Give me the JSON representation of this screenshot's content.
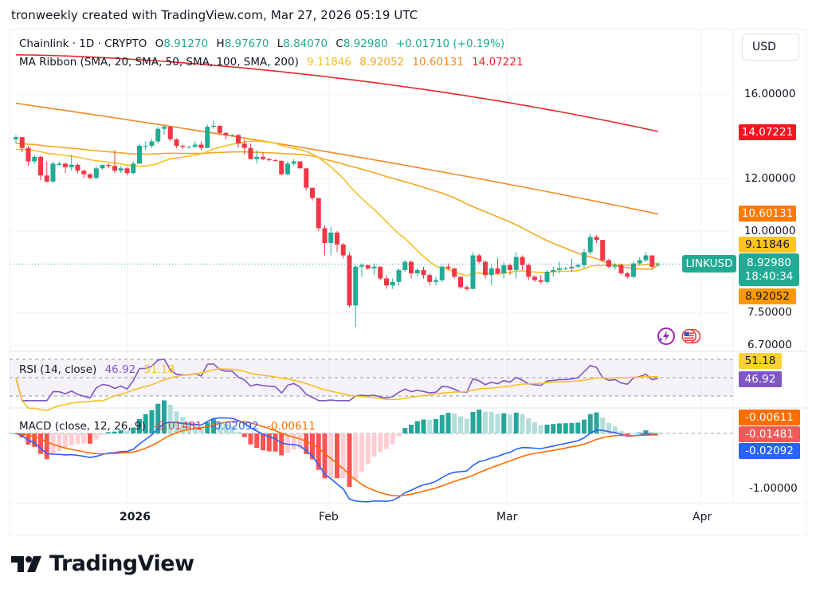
{
  "credit": "tronweekly created with TradingView.com, Mar 27, 2026 05:19 UTC",
  "symbol": {
    "name": "Chainlink · 1D · CRYPTO",
    "ticker": "LINKUSD",
    "open_label": "O",
    "open": "8.91270",
    "high_label": "H",
    "high": "8.97670",
    "low_label": "L",
    "low": "8.84070",
    "close_label": "C",
    "close": "8.92980",
    "change": "+0.01710 (+0.19%)",
    "countdown": "18:40:34"
  },
  "ma_ribbon": {
    "label": "MA Ribbon (SMA, 20, SMA, 50, SMA, 100, SMA, 200)",
    "values": [
      "9.11846",
      "8.92052",
      "10.60131",
      "14.07221"
    ],
    "colors": [
      "#f6c026",
      "#f5a623",
      "#f08a24",
      "#e8262d"
    ]
  },
  "rsi": {
    "label": "RSI (14, close)",
    "value": "46.92",
    "ma": "51.18"
  },
  "macd": {
    "label": "MACD (close, 12, 26, 9)",
    "hist": "-0.01481",
    "macd": "-0.02092",
    "signal": "-0.00611"
  },
  "currency_button": "USD",
  "price_axis": [
    "16.00000",
    "12.00000",
    "10.00000",
    "7.50000",
    "6.70000"
  ],
  "macd_axis": [
    "-1.00000"
  ],
  "tags": {
    "sma200": "14.07221",
    "sma100": "10.60131",
    "sma20": "9.11846",
    "sma50": "8.92052",
    "rsi_ma": "51.18",
    "rsi": "46.92",
    "signal": "-0.00611",
    "hist": "-0.01481",
    "macd": "-0.02092"
  },
  "time_axis": [
    "2026",
    "Feb",
    "Mar",
    "Apr"
  ],
  "logo_text": "TradingView",
  "colors": {
    "up": "#22ab94",
    "down": "#f23645",
    "rsi": "#7e57c2",
    "macd": "#2962ff",
    "signal": "#ff6d00"
  },
  "chart_data": {
    "type": "candlestick",
    "title": "Chainlink · 1D · CRYPTO (LINKUSD)",
    "xlabel": "",
    "ylabel": "USD",
    "x_ticks": [
      "2026",
      "Feb",
      "Mar",
      "Apr"
    ],
    "ylim": [
      6.7,
      18.0
    ],
    "candles_ohlc": [
      [
        13.7,
        13.9,
        13.5,
        13.8
      ],
      [
        13.8,
        13.8,
        13.1,
        13.3
      ],
      [
        13.3,
        13.4,
        12.5,
        12.7
      ],
      [
        12.7,
        13.0,
        12.6,
        12.9
      ],
      [
        12.9,
        12.95,
        11.9,
        12.1
      ],
      [
        12.1,
        12.7,
        11.8,
        11.85
      ],
      [
        11.85,
        12.7,
        11.8,
        12.6
      ],
      [
        12.55,
        12.7,
        12.5,
        12.6
      ],
      [
        12.6,
        12.65,
        12.2,
        12.45
      ],
      [
        12.45,
        13.0,
        12.3,
        12.55
      ],
      [
        12.55,
        12.6,
        12.2,
        12.3
      ],
      [
        12.3,
        12.35,
        12.0,
        12.15
      ],
      [
        12.15,
        12.2,
        11.95,
        12.0
      ],
      [
        12.0,
        12.5,
        11.95,
        12.4
      ],
      [
        12.4,
        12.55,
        12.35,
        12.55
      ],
      [
        12.55,
        12.6,
        12.4,
        12.5
      ],
      [
        12.5,
        13.2,
        12.2,
        12.3
      ],
      [
        12.3,
        12.5,
        12.2,
        12.4
      ],
      [
        12.4,
        12.45,
        12.1,
        12.2
      ],
      [
        12.2,
        12.7,
        12.15,
        12.6
      ],
      [
        12.6,
        13.5,
        12.6,
        13.4
      ],
      [
        13.4,
        13.6,
        13.2,
        13.4
      ],
      [
        13.4,
        13.7,
        13.3,
        13.6
      ],
      [
        13.6,
        14.3,
        13.5,
        14.2
      ],
      [
        14.2,
        14.4,
        13.9,
        14.3
      ],
      [
        14.3,
        14.3,
        13.6,
        13.7
      ],
      [
        13.7,
        13.75,
        13.3,
        13.4
      ],
      [
        13.4,
        13.45,
        13.25,
        13.35
      ],
      [
        13.35,
        13.4,
        13.3,
        13.35
      ],
      [
        13.35,
        13.6,
        13.3,
        13.45
      ],
      [
        13.45,
        13.6,
        13.2,
        13.3
      ],
      [
        13.3,
        14.4,
        13.3,
        14.3
      ],
      [
        14.3,
        14.6,
        14.2,
        14.35
      ],
      [
        14.35,
        14.35,
        13.9,
        14.0
      ],
      [
        14.0,
        14.05,
        13.7,
        13.9
      ],
      [
        13.9,
        13.95,
        13.85,
        13.9
      ],
      [
        13.9,
        13.95,
        13.3,
        13.5
      ],
      [
        13.5,
        13.7,
        13.0,
        13.3
      ],
      [
        13.3,
        13.5,
        12.8,
        12.8
      ],
      [
        12.8,
        13.2,
        12.6,
        12.9
      ],
      [
        12.9,
        13.1,
        12.75,
        12.8
      ],
      [
        12.8,
        12.85,
        12.7,
        12.75
      ],
      [
        12.75,
        12.8,
        12.7,
        12.72
      ],
      [
        12.72,
        12.75,
        12.1,
        12.15
      ],
      [
        12.15,
        12.7,
        12.1,
        12.6
      ],
      [
        12.6,
        12.8,
        12.5,
        12.7
      ],
      [
        12.7,
        12.7,
        12.4,
        12.4
      ],
      [
        12.4,
        12.4,
        11.5,
        11.6
      ],
      [
        11.6,
        11.6,
        11.1,
        11.2
      ],
      [
        11.2,
        11.2,
        10.0,
        10.1
      ],
      [
        10.1,
        10.2,
        9.2,
        9.6
      ],
      [
        9.6,
        10.15,
        9.2,
        9.95
      ],
      [
        9.95,
        10.0,
        9.3,
        9.55
      ],
      [
        9.55,
        9.6,
        9.1,
        9.2
      ],
      [
        9.2,
        9.3,
        7.7,
        7.75
      ],
      [
        7.75,
        8.9,
        7.2,
        8.85
      ],
      [
        8.85,
        8.95,
        8.55,
        8.9
      ],
      [
        8.9,
        8.9,
        8.75,
        8.8
      ],
      [
        8.8,
        8.95,
        8.6,
        8.85
      ],
      [
        8.85,
        8.85,
        8.45,
        8.5
      ],
      [
        8.5,
        8.6,
        8.2,
        8.3
      ],
      [
        8.3,
        8.5,
        8.2,
        8.4
      ],
      [
        8.4,
        8.8,
        8.3,
        8.75
      ],
      [
        8.75,
        9.05,
        8.7,
        9.0
      ],
      [
        9.0,
        9.05,
        8.5,
        8.65
      ],
      [
        8.65,
        8.8,
        8.55,
        8.75
      ],
      [
        8.75,
        8.85,
        8.5,
        8.6
      ],
      [
        8.6,
        8.65,
        8.3,
        8.4
      ],
      [
        8.4,
        8.55,
        8.3,
        8.45
      ],
      [
        8.45,
        8.9,
        8.4,
        8.85
      ],
      [
        8.85,
        8.95,
        8.75,
        8.8
      ],
      [
        8.8,
        8.8,
        8.5,
        8.55
      ],
      [
        8.55,
        8.55,
        8.2,
        8.25
      ],
      [
        8.25,
        8.3,
        8.15,
        8.2
      ],
      [
        8.2,
        9.3,
        8.2,
        9.2
      ],
      [
        9.2,
        9.25,
        8.95,
        9.0
      ],
      [
        9.0,
        9.05,
        8.5,
        8.6
      ],
      [
        8.6,
        8.9,
        8.3,
        8.8
      ],
      [
        8.8,
        9.1,
        8.6,
        8.65
      ],
      [
        8.65,
        9.0,
        8.5,
        8.9
      ],
      [
        8.9,
        8.95,
        8.6,
        8.75
      ],
      [
        8.75,
        9.3,
        8.5,
        9.15
      ],
      [
        9.15,
        9.2,
        8.75,
        8.9
      ],
      [
        8.9,
        8.95,
        8.45,
        8.55
      ],
      [
        8.55,
        8.6,
        8.4,
        8.45
      ],
      [
        8.45,
        8.6,
        8.35,
        8.4
      ],
      [
        8.4,
        8.75,
        8.35,
        8.7
      ],
      [
        8.7,
        8.85,
        8.55,
        8.75
      ],
      [
        8.75,
        9.0,
        8.65,
        8.8
      ],
      [
        8.8,
        8.85,
        8.75,
        8.8
      ],
      [
        8.8,
        9.1,
        8.7,
        8.85
      ],
      [
        8.85,
        8.95,
        8.8,
        8.9
      ],
      [
        8.9,
        9.4,
        8.8,
        9.3
      ],
      [
        9.3,
        9.9,
        9.2,
        9.8
      ],
      [
        9.8,
        9.85,
        9.6,
        9.7
      ],
      [
        9.7,
        9.7,
        9.0,
        9.05
      ],
      [
        9.05,
        9.1,
        8.8,
        8.85
      ],
      [
        8.85,
        8.95,
        8.75,
        8.9
      ],
      [
        8.9,
        8.95,
        8.6,
        8.65
      ],
      [
        8.65,
        8.7,
        8.5,
        8.55
      ],
      [
        8.55,
        9.0,
        8.5,
        8.95
      ],
      [
        8.95,
        9.15,
        8.9,
        9.05
      ],
      [
        9.05,
        9.3,
        9.0,
        9.2
      ],
      [
        9.2,
        9.2,
        8.8,
        8.85
      ],
      [
        8.91,
        8.98,
        8.84,
        8.93
      ]
    ],
    "series": [
      {
        "name": "SMA 20",
        "last": 9.11846
      },
      {
        "name": "SMA 50",
        "last": 8.92052
      },
      {
        "name": "SMA 100",
        "last": 10.60131
      },
      {
        "name": "SMA 200",
        "last": 14.07221
      },
      {
        "name": "RSI 14",
        "last": 46.92
      },
      {
        "name": "RSI MA",
        "last": 51.18
      },
      {
        "name": "MACD",
        "last": -0.02092
      },
      {
        "name": "Signal",
        "last": -0.00611
      },
      {
        "name": "Histogram",
        "last": -0.01481
      }
    ]
  }
}
